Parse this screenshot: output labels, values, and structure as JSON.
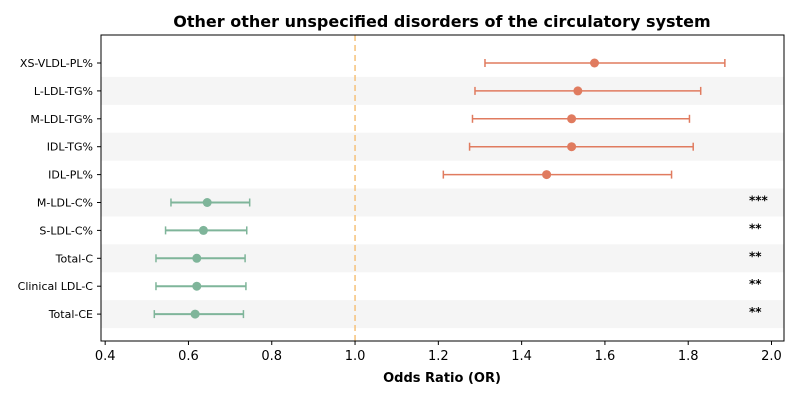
{
  "chart_data": {
    "type": "forest",
    "title": "Other other unspecified disorders of the circulatory system",
    "xlabel": "Odds Ratio (OR)",
    "xlim": [
      0.39,
      2.03
    ],
    "xticks": [
      0.4,
      0.6,
      0.8,
      1.0,
      1.2,
      1.4,
      1.6,
      1.8,
      2.0
    ],
    "xtick_labels": [
      "0.4",
      "0.6",
      "0.8",
      "1.0",
      "1.2",
      "1.4",
      "1.6",
      "1.8",
      "2.0"
    ],
    "reference_line": 1.0,
    "reference_line_color": "#f5c27a",
    "risk_color": "#e07b5f",
    "protective_color": "#7fb59a",
    "band_color": "#f5f5f5",
    "rows": [
      {
        "label": "XS-VLDL-PL%",
        "or": 1.575,
        "lo": 1.312,
        "hi": 1.888,
        "sig": "",
        "group": "risk"
      },
      {
        "label": "L-LDL-TG%",
        "or": 1.535,
        "lo": 1.288,
        "hi": 1.83,
        "sig": "",
        "group": "risk"
      },
      {
        "label": "M-LDL-TG%",
        "or": 1.52,
        "lo": 1.282,
        "hi": 1.803,
        "sig": "",
        "group": "risk"
      },
      {
        "label": "IDL-TG%",
        "or": 1.52,
        "lo": 1.275,
        "hi": 1.812,
        "sig": "",
        "group": "risk"
      },
      {
        "label": "IDL-PL%",
        "or": 1.46,
        "lo": 1.212,
        "hi": 1.76,
        "sig": "",
        "group": "risk"
      },
      {
        "label": "M-LDL-C%",
        "or": 0.645,
        "lo": 0.558,
        "hi": 0.747,
        "sig": "***",
        "group": "protective"
      },
      {
        "label": "S-LDL-C%",
        "or": 0.636,
        "lo": 0.545,
        "hi": 0.74,
        "sig": "**",
        "group": "protective"
      },
      {
        "label": "Total-C",
        "or": 0.62,
        "lo": 0.522,
        "hi": 0.736,
        "sig": "**",
        "group": "protective"
      },
      {
        "label": "Clinical LDL-C",
        "or": 0.62,
        "lo": 0.522,
        "hi": 0.738,
        "sig": "**",
        "group": "protective"
      },
      {
        "label": "Total-CE",
        "or": 0.616,
        "lo": 0.518,
        "hi": 0.732,
        "sig": "**",
        "group": "protective"
      }
    ]
  }
}
